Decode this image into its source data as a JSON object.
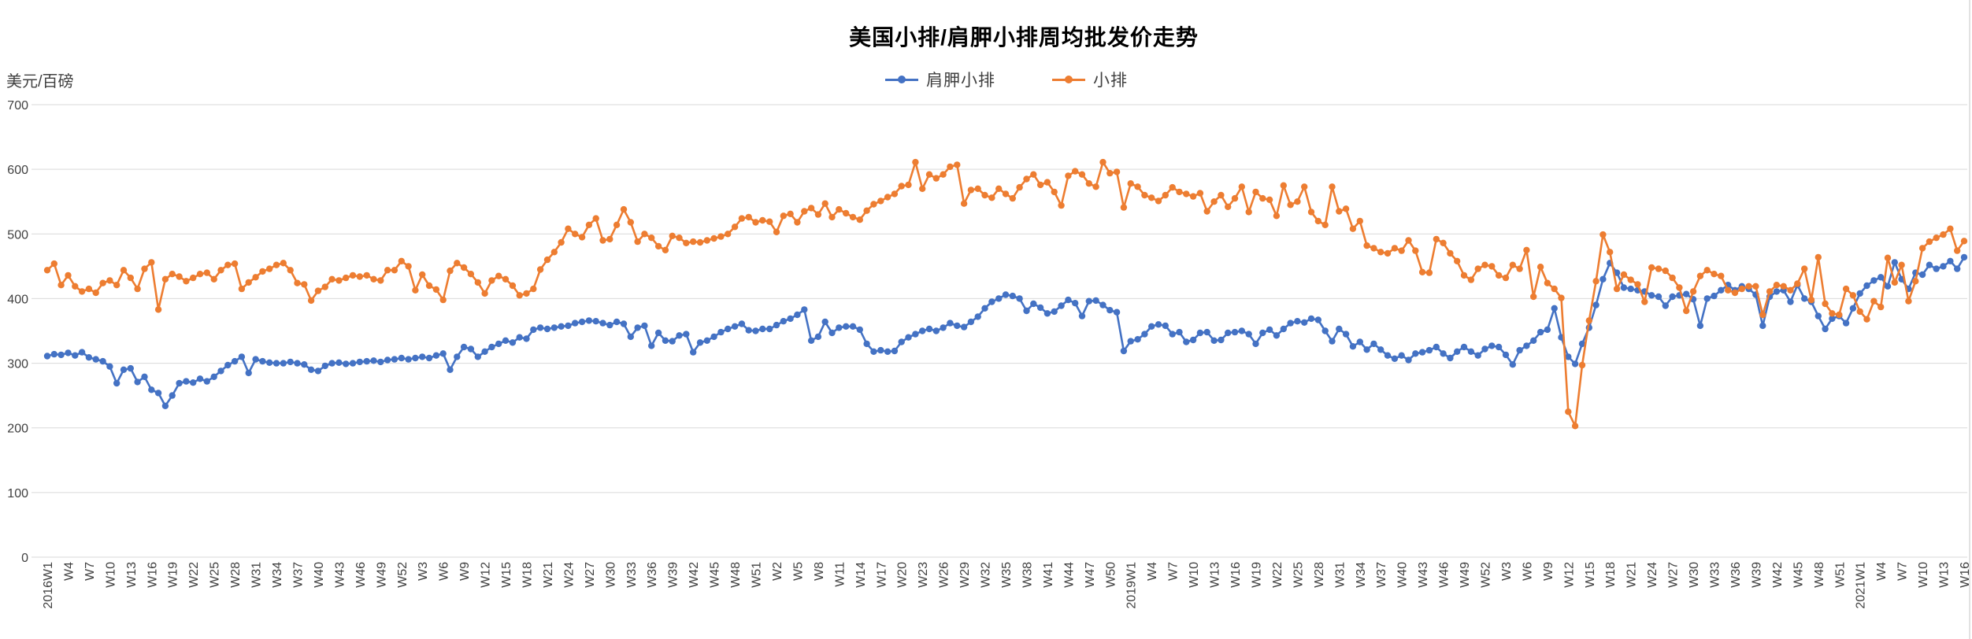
{
  "colors": {
    "background": "#FFFFFF",
    "grid": "#D9D9D9",
    "axis_label": "#404040",
    "title": "#000000",
    "series_blue": "#4472C4",
    "series_orange": "#ED7D31"
  },
  "chart_data": {
    "type": "line",
    "title": "美国小排/肩胛小排周均批发价走势",
    "ylabel": "美元/百磅",
    "xlabel": "",
    "ylim": [
      0,
      700
    ],
    "y_ticks": [
      0,
      100,
      200,
      300,
      400,
      500,
      600,
      700
    ],
    "grid": true,
    "legend_position": "top",
    "marker": "circle",
    "n_points": 277,
    "tick_interval_weeks": 3,
    "x_tick_labels": [
      "2016W1",
      "W4",
      "W7",
      "W10",
      "W13",
      "W16",
      "W19",
      "W22",
      "W25",
      "W28",
      "W31",
      "W34",
      "W37",
      "W40",
      "W43",
      "W46",
      "W49",
      "W52",
      "W3",
      "W6",
      "W9",
      "W12",
      "W15",
      "W18",
      "W21",
      "W24",
      "W27",
      "W30",
      "W33",
      "W36",
      "W39",
      "W42",
      "W45",
      "W48",
      "W51",
      "W2",
      "W5",
      "W8",
      "W11",
      "W14",
      "W17",
      "W20",
      "W23",
      "W26",
      "W29",
      "W32",
      "W35",
      "W38",
      "W41",
      "W44",
      "W47",
      "W50",
      "2019W1",
      "W4",
      "W7",
      "W10",
      "W13",
      "W16",
      "W19",
      "W22",
      "W25",
      "W28",
      "W31",
      "W34",
      "W37",
      "W40",
      "W43",
      "W46",
      "W49",
      "W52",
      "W3",
      "W6",
      "W9",
      "W12",
      "W15",
      "W18",
      "W21",
      "W24",
      "W27",
      "W30",
      "W33",
      "W36",
      "W39",
      "W42",
      "W45",
      "W48",
      "W51",
      "2021W1",
      "W4",
      "W7",
      "W10",
      "W13",
      "W16"
    ],
    "series": [
      {
        "key": "shoulder",
        "name": "肩胛小排",
        "color": "#4472C4",
        "values": [
          311,
          314,
          313,
          316,
          312,
          317,
          309,
          306,
          303,
          295,
          269,
          290,
          292,
          271,
          279,
          259,
          254,
          234,
          250,
          269,
          272,
          270,
          276,
          272,
          279,
          288,
          297,
          303,
          310,
          285,
          306,
          303,
          301,
          300,
          300,
          302,
          300,
          298,
          290,
          288,
          296,
          300,
          301,
          299,
          300,
          302,
          303,
          304,
          302,
          305,
          306,
          308,
          306,
          308,
          310,
          308,
          312,
          315,
          290,
          310,
          325,
          322,
          310,
          318,
          325,
          330,
          335,
          332,
          340,
          338,
          352,
          355,
          353,
          355,
          357,
          358,
          362,
          364,
          366,
          365,
          362,
          359,
          364,
          361,
          341,
          355,
          358,
          327,
          347,
          335,
          334,
          343,
          345,
          317,
          332,
          335,
          341,
          348,
          353,
          357,
          361,
          351,
          350,
          353,
          353,
          359,
          365,
          369,
          375,
          383,
          335,
          341,
          364,
          347,
          355,
          357,
          357,
          352,
          330,
          318,
          320,
          318,
          319,
          333,
          340,
          345,
          350,
          353,
          350,
          355,
          362,
          358,
          356,
          364,
          372,
          385,
          395,
          400,
          406,
          404,
          400,
          381,
          392,
          386,
          377,
          380,
          389,
          398,
          393,
          373,
          396,
          397,
          390,
          382,
          379,
          319,
          334,
          337,
          345,
          357,
          360,
          358,
          345,
          348,
          333,
          336,
          347,
          348,
          335,
          336,
          347,
          348,
          350,
          345,
          330,
          347,
          352,
          343,
          353,
          362,
          365,
          363,
          369,
          367,
          350,
          334,
          353,
          345,
          326,
          333,
          321,
          330,
          321,
          312,
          307,
          312,
          305,
          315,
          317,
          320,
          325,
          315,
          308,
          318,
          325,
          318,
          312,
          322,
          327,
          325,
          313,
          298,
          320,
          327,
          335,
          348,
          352,
          385,
          340,
          310,
          299,
          330,
          355,
          390,
          430,
          455,
          440,
          417,
          415,
          413,
          411,
          405,
          403,
          389,
          403,
          405,
          407,
          399,
          358,
          400,
          404,
          413,
          421,
          413,
          419,
          415,
          406,
          358,
          403,
          411,
          413,
          395,
          421,
          400,
          395,
          373,
          353,
          369,
          373,
          362,
          385,
          408,
          420,
          428,
          433,
          419,
          456,
          430,
          415,
          440,
          437,
          452,
          446,
          450,
          458,
          446,
          464
        ]
      },
      {
        "key": "ribs",
        "name": "小排",
        "color": "#ED7D31",
        "values": [
          444,
          454,
          421,
          436,
          419,
          411,
          415,
          409,
          424,
          428,
          421,
          444,
          432,
          415,
          446,
          456,
          383,
          430,
          438,
          434,
          427,
          432,
          438,
          440,
          430,
          444,
          452,
          454,
          415,
          425,
          433,
          442,
          446,
          452,
          455,
          444,
          424,
          422,
          397,
          412,
          418,
          430,
          428,
          432,
          436,
          434,
          436,
          430,
          428,
          444,
          444,
          458,
          450,
          413,
          437,
          420,
          414,
          398,
          443,
          455,
          448,
          438,
          425,
          408,
          428,
          435,
          430,
          420,
          405,
          408,
          415,
          445,
          460,
          472,
          487,
          508,
          500,
          495,
          514,
          524,
          490,
          492,
          514,
          538,
          518,
          488,
          500,
          494,
          481,
          475,
          497,
          494,
          486,
          488,
          487,
          490,
          493,
          496,
          500,
          511,
          524,
          526,
          518,
          521,
          519,
          503,
          528,
          531,
          518,
          535,
          540,
          530,
          547,
          526,
          538,
          532,
          526,
          522,
          536,
          546,
          551,
          557,
          562,
          574,
          576,
          611,
          570,
          592,
          586,
          592,
          604,
          607,
          547,
          568,
          570,
          560,
          556,
          570,
          562,
          555,
          572,
          585,
          592,
          576,
          580,
          565,
          544,
          590,
          597,
          592,
          578,
          573,
          611,
          594,
          596,
          541,
          578,
          573,
          560,
          556,
          551,
          560,
          572,
          565,
          562,
          558,
          563,
          535,
          550,
          560,
          542,
          555,
          573,
          534,
          565,
          555,
          553,
          528,
          575,
          545,
          550,
          573,
          534,
          520,
          514,
          573,
          535,
          539,
          508,
          520,
          482,
          478,
          472,
          470,
          478,
          474,
          490,
          474,
          441,
          440,
          492,
          486,
          470,
          458,
          436,
          429,
          446,
          452,
          450,
          436,
          432,
          452,
          446,
          475,
          403,
          449,
          424,
          415,
          401,
          225,
          203,
          297,
          366,
          427,
          499,
          472,
          415,
          437,
          429,
          422,
          395,
          448,
          446,
          443,
          432,
          417,
          381,
          411,
          435,
          444,
          438,
          435,
          413,
          409,
          415,
          419,
          419,
          375,
          411,
          421,
          419,
          413,
          423,
          446,
          398,
          464,
          392,
          377,
          375,
          415,
          405,
          380,
          368,
          396,
          387,
          463,
          425,
          452,
          396,
          427,
          478,
          488,
          494,
          499,
          508,
          474,
          489
        ]
      }
    ]
  }
}
